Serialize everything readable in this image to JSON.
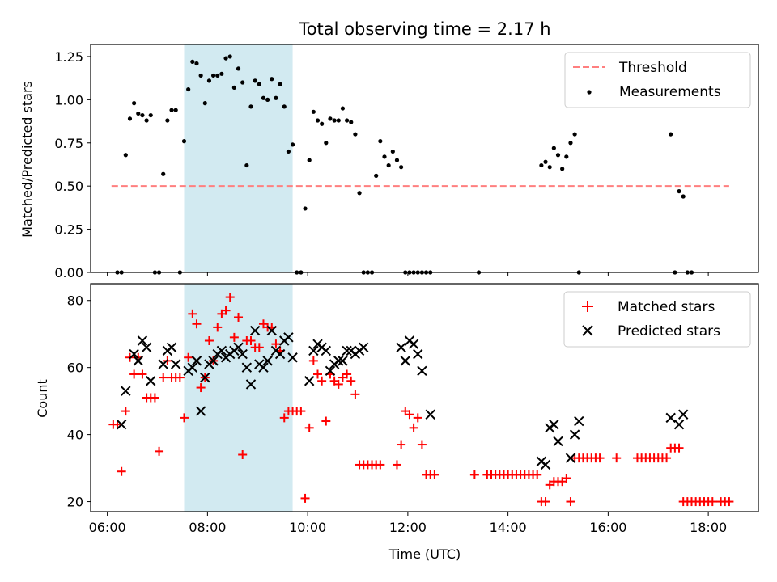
{
  "chart_data": [
    {
      "type": "scatter",
      "title": "Total observing time = 2.17 h",
      "xlabel": "",
      "ylabel": "Matched/Predicted stars",
      "xlim": [
        "05:40",
        "19:00"
      ],
      "ylim": [
        0,
        1.32
      ],
      "yticks": [
        "0.00",
        "0.25",
        "0.50",
        "0.75",
        "1.00",
        "1.25"
      ],
      "highlight_span": {
        "from": "07:32",
        "to": "09:42",
        "color": "#add8e6"
      },
      "legend": {
        "position": "top-right",
        "entries": [
          "Threshold",
          "Measurements"
        ]
      },
      "series": [
        {
          "name": "Threshold",
          "style": "dashed-line",
          "color": "#ff7f7f",
          "x": [
            "06:05",
            "18:25"
          ],
          "y": [
            0.5,
            0.5
          ]
        },
        {
          "name": "Measurements",
          "style": "dot",
          "color": "#000000",
          "x": [
            "06:12",
            "06:17",
            "06:22",
            "06:27",
            "06:32",
            "06:37",
            "06:42",
            "06:47",
            "06:52",
            "06:57",
            "07:02",
            "07:07",
            "07:12",
            "07:17",
            "07:22",
            "07:27",
            "07:32",
            "07:37",
            "07:42",
            "07:47",
            "07:52",
            "07:57",
            "08:02",
            "08:07",
            "08:12",
            "08:17",
            "08:22",
            "08:27",
            "08:32",
            "08:37",
            "08:42",
            "08:47",
            "08:52",
            "08:57",
            "09:02",
            "09:07",
            "09:12",
            "09:17",
            "09:22",
            "09:27",
            "09:32",
            "09:37",
            "09:42",
            "09:47",
            "09:52",
            "09:57",
            "10:02",
            "10:07",
            "10:12",
            "10:17",
            "10:22",
            "10:27",
            "10:32",
            "10:37",
            "10:42",
            "10:47",
            "10:52",
            "10:57",
            "11:02",
            "11:07",
            "11:12",
            "11:17",
            "11:22",
            "11:27",
            "11:32",
            "11:37",
            "11:42",
            "11:47",
            "11:52",
            "11:57",
            "12:02",
            "12:07",
            "12:12",
            "12:17",
            "12:22",
            "12:27",
            "13:25",
            "14:40",
            "14:45",
            "14:50",
            "14:55",
            "15:00",
            "15:05",
            "15:10",
            "15:15",
            "15:20",
            "15:25",
            "17:15",
            "17:20",
            "17:25",
            "17:30",
            "17:35",
            "17:40"
          ],
          "y": [
            0,
            0,
            0.68,
            0.89,
            0.98,
            0.92,
            0.91,
            0.88,
            0.91,
            0,
            0,
            0.57,
            0.88,
            0.94,
            0.94,
            0,
            0.76,
            1.06,
            1.22,
            1.21,
            1.14,
            0.98,
            1.11,
            1.14,
            1.14,
            1.15,
            1.24,
            1.25,
            1.07,
            1.18,
            1.1,
            0.62,
            0.96,
            1.11,
            1.09,
            1.01,
            1.0,
            1.12,
            1.01,
            1.09,
            0.96,
            0.7,
            0.74,
            0,
            0,
            0.37,
            0.65,
            0.93,
            0.88,
            0.86,
            0.75,
            0.89,
            0.88,
            0.88,
            0.95,
            0.88,
            0.87,
            0.8,
            0.46,
            0,
            0,
            0,
            0.56,
            0.76,
            0.67,
            0.62,
            0.7,
            0.65,
            0.61,
            0,
            0,
            0,
            0,
            0,
            0,
            0,
            0,
            0.62,
            0.64,
            0.61,
            0.72,
            0.68,
            0.6,
            0.67,
            0.75,
            0.8,
            0,
            0.8,
            0,
            0.47,
            0.44,
            0,
            0
          ]
        }
      ]
    },
    {
      "type": "scatter",
      "title": "",
      "xlabel": "Time (UTC)",
      "ylabel": "Count",
      "xlim": [
        "05:40",
        "19:00"
      ],
      "ylim": [
        17,
        85
      ],
      "xticks": [
        "06:00",
        "08:00",
        "10:00",
        "12:00",
        "14:00",
        "16:00",
        "18:00"
      ],
      "yticks": [
        "20",
        "40",
        "60",
        "80"
      ],
      "highlight_span": {
        "from": "07:32",
        "to": "09:42",
        "color": "#add8e6"
      },
      "legend": {
        "position": "top-right",
        "entries": [
          "Matched stars",
          "Predicted stars"
        ]
      },
      "series": [
        {
          "name": "Matched stars",
          "style": "plus",
          "color": "#ff0000",
          "x": [
            "06:07",
            "06:12",
            "06:17",
            "06:22",
            "06:27",
            "06:32",
            "06:37",
            "06:42",
            "06:47",
            "06:52",
            "06:57",
            "07:02",
            "07:07",
            "07:12",
            "07:17",
            "07:22",
            "07:27",
            "07:32",
            "07:37",
            "07:42",
            "07:47",
            "07:52",
            "07:57",
            "08:02",
            "08:07",
            "08:12",
            "08:17",
            "08:22",
            "08:27",
            "08:32",
            "08:37",
            "08:42",
            "08:47",
            "08:52",
            "08:57",
            "09:02",
            "09:07",
            "09:12",
            "09:17",
            "09:22",
            "09:27",
            "09:32",
            "09:37",
            "09:42",
            "09:47",
            "09:52",
            "09:57",
            "10:02",
            "10:07",
            "10:12",
            "10:17",
            "10:22",
            "10:27",
            "10:32",
            "10:37",
            "10:42",
            "10:47",
            "10:52",
            "10:57",
            "11:02",
            "11:07",
            "11:12",
            "11:17",
            "11:22",
            "11:27",
            "11:47",
            "11:52",
            "11:57",
            "12:02",
            "12:07",
            "12:12",
            "12:17",
            "12:22",
            "12:27",
            "12:32",
            "13:20",
            "13:35",
            "13:40",
            "13:45",
            "13:50",
            "13:55",
            "14:00",
            "14:05",
            "14:10",
            "14:15",
            "14:20",
            "14:25",
            "14:30",
            "14:35",
            "14:40",
            "14:45",
            "14:50",
            "14:55",
            "15:00",
            "15:05",
            "15:10",
            "15:15",
            "15:20",
            "15:25",
            "15:30",
            "15:35",
            "15:40",
            "15:45",
            "15:50",
            "16:10",
            "16:35",
            "16:40",
            "16:45",
            "16:50",
            "16:55",
            "17:00",
            "17:05",
            "17:10",
            "17:15",
            "17:20",
            "17:25",
            "17:30",
            "17:35",
            "17:40",
            "17:45",
            "17:50",
            "17:55",
            "18:00",
            "18:05",
            "18:15",
            "18:20",
            "18:25"
          ],
          "y": [
            43,
            43,
            29,
            47,
            63,
            58,
            63,
            58,
            51,
            51,
            51,
            35,
            57,
            62,
            57,
            57,
            57,
            45,
            63,
            76,
            73,
            54,
            57,
            68,
            62,
            72,
            76,
            77,
            81,
            69,
            75,
            34,
            68,
            68,
            66,
            66,
            73,
            72,
            72,
            67,
            65,
            45,
            47,
            47,
            47,
            47,
            21,
            42,
            62,
            58,
            56,
            44,
            58,
            56,
            55,
            57,
            58,
            56,
            52,
            31,
            31,
            31,
            31,
            31,
            31,
            31,
            37,
            47,
            46,
            42,
            45,
            37,
            28,
            28,
            28,
            28,
            28,
            28,
            28,
            28,
            28,
            28,
            28,
            28,
            28,
            28,
            28,
            28,
            28,
            20,
            20,
            25,
            26,
            26,
            26,
            27,
            20,
            33,
            33,
            33,
            33,
            33,
            33,
            33,
            33,
            33,
            33,
            33,
            33,
            33,
            33,
            33,
            33,
            36,
            36,
            36,
            20,
            20,
            20,
            20,
            20,
            20,
            20,
            20,
            20,
            20,
            20
          ]
        },
        {
          "name": "Predicted stars",
          "style": "x",
          "color": "#000000",
          "x": [
            "06:17",
            "06:22",
            "06:32",
            "06:37",
            "06:42",
            "06:47",
            "06:52",
            "07:07",
            "07:12",
            "07:17",
            "07:22",
            "07:37",
            "07:42",
            "07:47",
            "07:52",
            "07:57",
            "08:02",
            "08:07",
            "08:12",
            "08:17",
            "08:22",
            "08:27",
            "08:32",
            "08:37",
            "08:42",
            "08:47",
            "08:52",
            "08:57",
            "09:02",
            "09:07",
            "09:12",
            "09:17",
            "09:22",
            "09:27",
            "09:32",
            "09:37",
            "09:42",
            "10:02",
            "10:07",
            "10:12",
            "10:17",
            "10:22",
            "10:27",
            "10:32",
            "10:37",
            "10:42",
            "10:47",
            "10:52",
            "10:57",
            "11:02",
            "11:07",
            "11:52",
            "11:57",
            "12:02",
            "12:07",
            "12:12",
            "12:17",
            "12:27",
            "14:40",
            "14:45",
            "14:50",
            "14:55",
            "15:00",
            "15:15",
            "15:20",
            "15:25",
            "17:15",
            "17:25",
            "17:30"
          ],
          "y": [
            43,
            53,
            64,
            62,
            68,
            66,
            56,
            61,
            65,
            66,
            61,
            59,
            60,
            62,
            47,
            57,
            61,
            62,
            64,
            65,
            63,
            64,
            65,
            66,
            64,
            60,
            55,
            71,
            61,
            60,
            62,
            71,
            65,
            64,
            68,
            69,
            63,
            56,
            65,
            67,
            66,
            65,
            59,
            61,
            62,
            62,
            65,
            65,
            64,
            65,
            66,
            66,
            62,
            68,
            67,
            64,
            59,
            46,
            32,
            31,
            42,
            43,
            38,
            33,
            40,
            44,
            45,
            43,
            46
          ]
        }
      ]
    }
  ]
}
